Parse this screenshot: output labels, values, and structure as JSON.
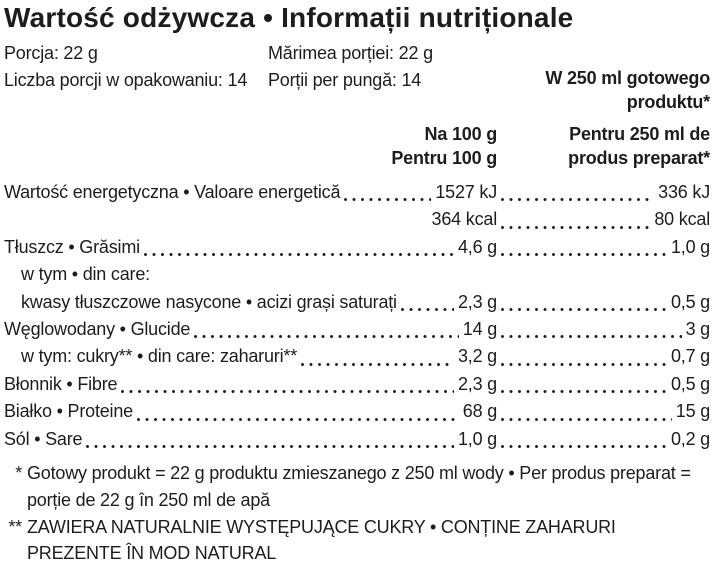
{
  "title": "Wartość odżywcza • Informații nutriționale",
  "serving_info": {
    "pl_serving": "Porcja: 22 g",
    "ro_serving": "Mărimea porției: 22 g",
    "pl_servings_per_pack": "Liczba porcji w opakowaniu: 14",
    "ro_servings_per_pack": "Porții per pungă: 14"
  },
  "columns": {
    "prepared_line1": "W 250 ml gotowego",
    "prepared_line2": "produktu*",
    "per100_line1": "Na 100 g",
    "per100_line2": "Pentru 100 g",
    "per250_line1": "Pentru 250 ml de",
    "per250_line2": "produs preparat*"
  },
  "rows": [
    {
      "label": "Wartość energetyczna • Valoare energetică",
      "per100": "1527 kJ",
      "per250": "336 kJ",
      "indent": false,
      "dots1": true,
      "dots2": true
    },
    {
      "label": "",
      "per100": "364 kcal",
      "per250": "80 kcal",
      "indent": false,
      "dots1": false,
      "dots2": true
    },
    {
      "label": "Tłuszcz • Grăsimi",
      "per100": "4,6 g",
      "per250": "1,0 g",
      "indent": false,
      "dots1": true,
      "dots2": true
    },
    {
      "label": "w tym • din care:",
      "per100": null,
      "per250": null,
      "indent": true,
      "dots1": false,
      "dots2": false
    },
    {
      "label": "kwasy tłuszczowe nasycone • acizi grași saturați",
      "per100": "2,3 g",
      "per250": "0,5 g",
      "indent": true,
      "dots1": true,
      "dots2": true
    },
    {
      "label": "Węglowodany • Glucide",
      "per100": "14 g",
      "per250": "3 g",
      "indent": false,
      "dots1": true,
      "dots2": true
    },
    {
      "label": "w tym: cukry** • din care: zaharuri**",
      "per100": "3,2 g",
      "per250": "0,7 g",
      "indent": true,
      "dots1": true,
      "dots2": true
    },
    {
      "label": "Błonnik • Fibre",
      "per100": "2,3 g",
      "per250": "0,5 g",
      "indent": false,
      "dots1": true,
      "dots2": true
    },
    {
      "label": "Białko • Proteine",
      "per100": "68 g",
      "per250": "15 g",
      "indent": false,
      "dots1": true,
      "dots2": true
    },
    {
      "label": "Sól • Sare",
      "per100": "1,0 g",
      "per250": "0,2 g",
      "indent": false,
      "dots1": true,
      "dots2": true
    }
  ],
  "footnotes": [
    {
      "marker": "*",
      "text": "Gotowy produkt = 22 g produktu zmieszanego z 250 ml wody • Per produs preparat = porție de 22 g în 250 ml de apă"
    },
    {
      "marker": "**",
      "text": "ZAWIERA NATURALNIE WYSTĘPUJĄCE CUKRY • CONȚINE ZAHARURI PREZENTE ÎN MOD NATURAL"
    }
  ],
  "colors": {
    "text": "#1d1d1b",
    "background": "#ffffff"
  }
}
